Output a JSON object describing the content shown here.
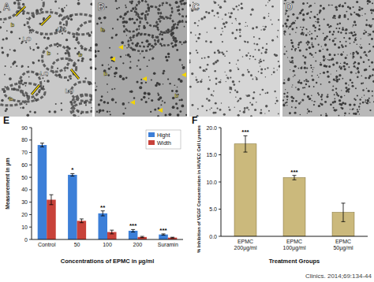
{
  "panels": [
    {
      "letter": "A",
      "labels": [
        "LO",
        "LO",
        "LO",
        "LO",
        "b",
        "b",
        "b",
        "b"
      ]
    },
    {
      "letter": "B",
      "labels": [
        "b",
        "b",
        "b"
      ]
    },
    {
      "letter": "C"
    },
    {
      "letter": "D"
    },
    {
      "letter": "E"
    },
    {
      "letter": "F"
    }
  ],
  "citation": "Clinics. 2014;69:134-44",
  "chart_data": [
    {
      "type": "bar",
      "x_label": "Concentrations of EPMC in µg/ml",
      "y_label": "Measurement in µm",
      "categories": [
        "Control",
        "50",
        "100",
        "200",
        "Suramin"
      ],
      "series": [
        {
          "name": "Hight",
          "color": "#3c7fd8",
          "values": [
            76,
            52,
            21,
            7,
            4
          ],
          "errors": [
            1.5,
            1,
            2,
            1,
            0.5
          ]
        },
        {
          "name": "Width",
          "color": "#c8423a",
          "values": [
            32,
            15,
            6,
            2,
            1.5
          ],
          "errors": [
            4,
            1.5,
            1.5,
            0.5,
            0.3
          ]
        }
      ],
      "significance": [
        null,
        "*",
        "**",
        "***",
        "***"
      ],
      "ylim": [
        0,
        90
      ],
      "yticks": [
        0,
        10,
        20,
        30,
        40,
        50,
        60,
        70,
        80,
        90
      ],
      "grid": false,
      "legend": "upper right"
    },
    {
      "type": "bar",
      "x_label": "Treatment Groups",
      "y_label": "% Inhibition of VEGF Concentration in HUVEC Cell Lysates",
      "categories": [
        "EPMC 200µg/ml",
        "EPMC 100µg/ml",
        "EPMC 50µg/ml"
      ],
      "values": [
        17,
        10.8,
        4.4
      ],
      "errors": [
        1.5,
        0.4,
        1.7
      ],
      "color": "#cbb97c",
      "significance": [
        "***",
        "***",
        null
      ],
      "ylim": [
        0,
        20
      ],
      "yticks": [
        {
          "value": 0,
          "label": "0.0"
        },
        {
          "value": 5,
          "label": "5.0"
        },
        {
          "value": 10,
          "label": "10.0"
        },
        {
          "value": 15,
          "label": "15.0"
        },
        {
          "value": 20,
          "label": "20.0"
        }
      ],
      "grid": false
    }
  ]
}
